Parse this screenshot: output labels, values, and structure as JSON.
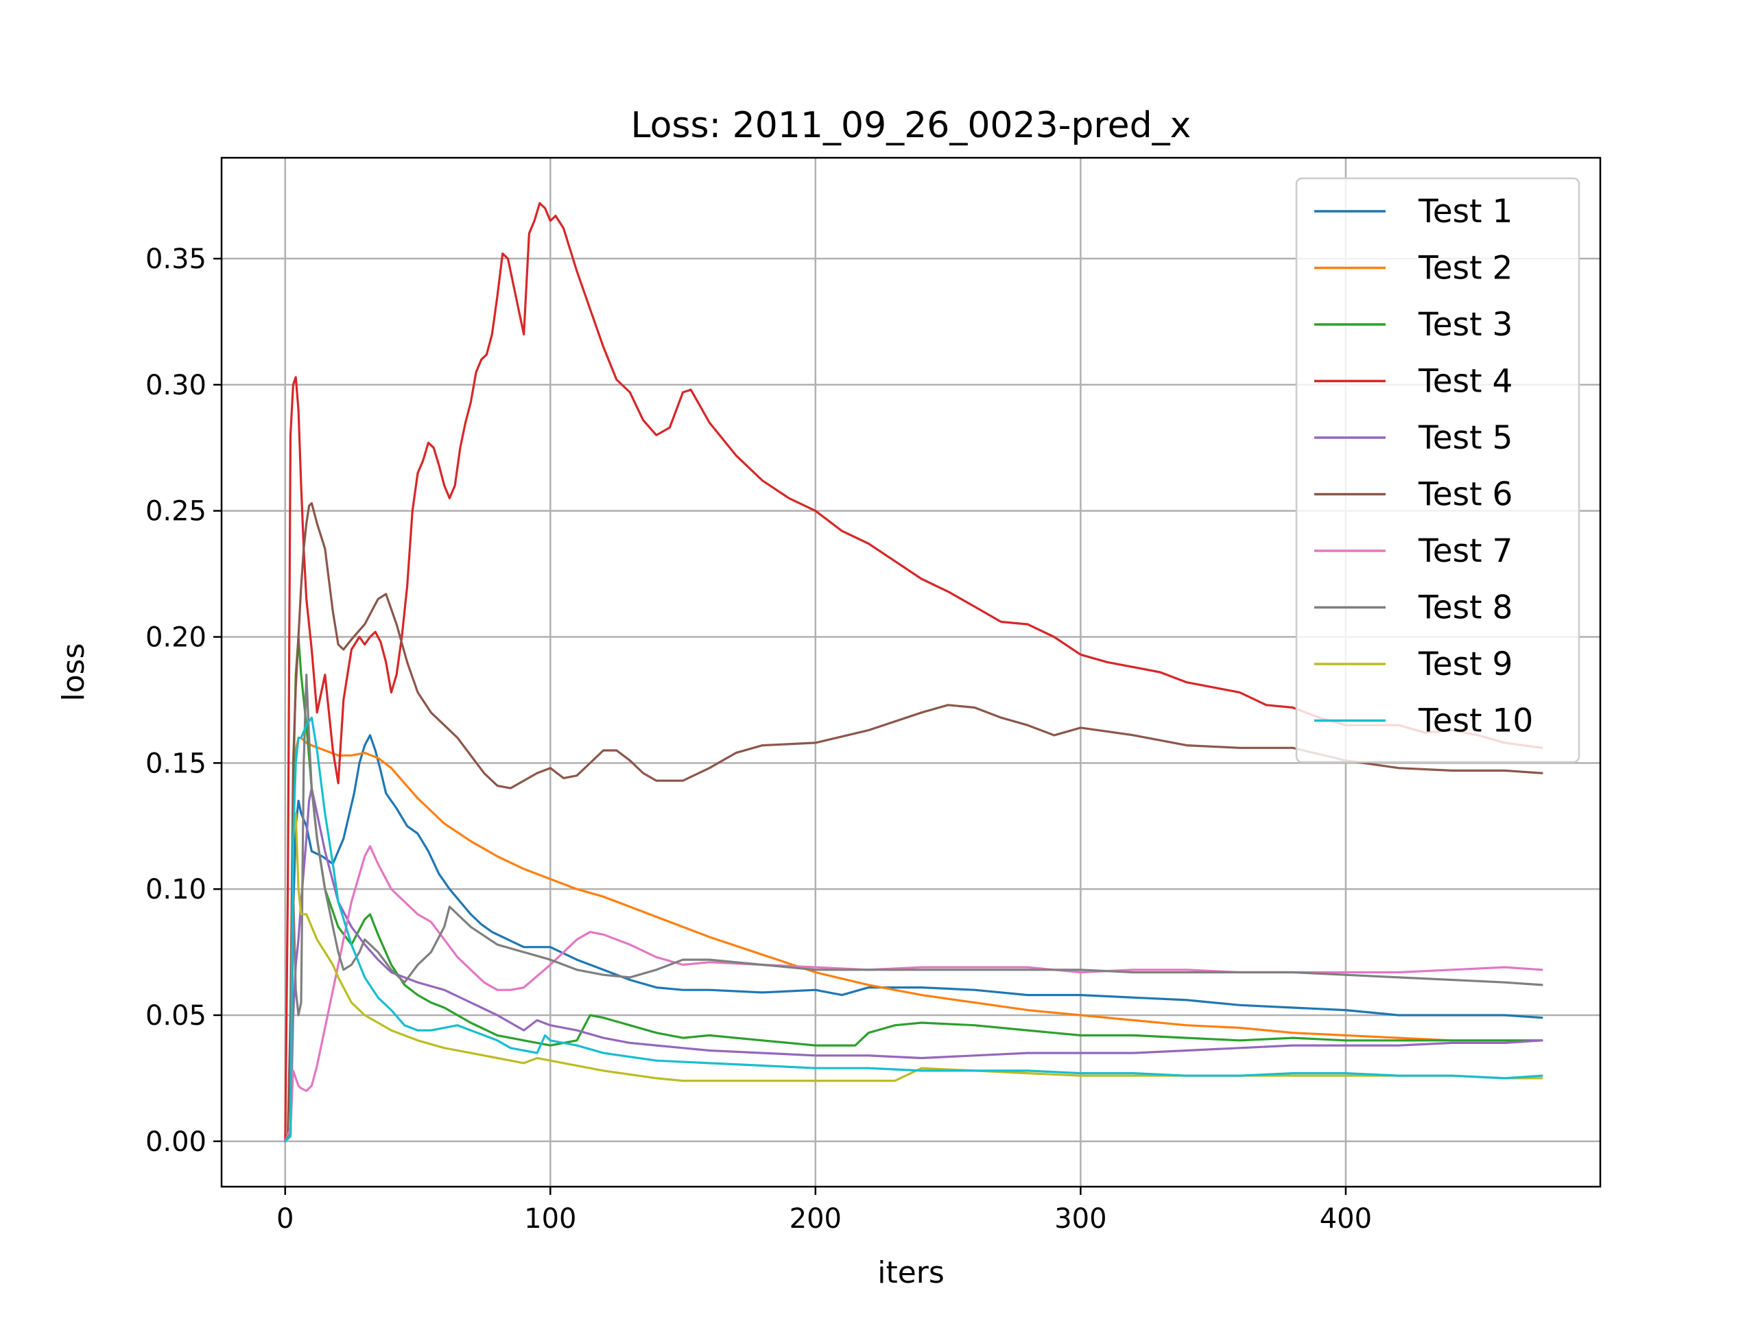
{
  "chart_data": {
    "type": "line",
    "title": "Loss: 2011_09_26_0023-pred_x",
    "xlabel": "iters",
    "ylabel": "loss",
    "xlim": [
      -24,
      496
    ],
    "ylim": [
      -0.018,
      0.39
    ],
    "xticks": [
      0,
      100,
      200,
      300,
      400
    ],
    "yticks": [
      0.0,
      0.05,
      0.1,
      0.15,
      0.2,
      0.25,
      0.3,
      0.35
    ],
    "ytick_labels": [
      "0.00",
      "0.05",
      "0.10",
      "0.15",
      "0.20",
      "0.25",
      "0.30",
      "0.35"
    ],
    "grid": true,
    "legend_position": "top-right",
    "series": [
      {
        "name": "Test 1",
        "color": "#1f77b4",
        "x": [
          0,
          2,
          3,
          4,
          5,
          6,
          8,
          10,
          14,
          18,
          22,
          26,
          28,
          30,
          32,
          34,
          36,
          38,
          42,
          46,
          50,
          54,
          58,
          62,
          66,
          70,
          74,
          78,
          82,
          86,
          90,
          94,
          100,
          110,
          120,
          130,
          140,
          150,
          160,
          180,
          200,
          210,
          220,
          240,
          260,
          280,
          300,
          320,
          340,
          360,
          380,
          400,
          420,
          440,
          460,
          474
        ],
        "y": [
          0.0,
          0.003,
          0.09,
          0.125,
          0.135,
          0.13,
          0.125,
          0.115,
          0.113,
          0.11,
          0.12,
          0.138,
          0.15,
          0.157,
          0.161,
          0.155,
          0.147,
          0.138,
          0.132,
          0.125,
          0.122,
          0.115,
          0.106,
          0.1,
          0.095,
          0.09,
          0.086,
          0.083,
          0.081,
          0.079,
          0.077,
          0.077,
          0.077,
          0.072,
          0.068,
          0.064,
          0.061,
          0.06,
          0.06,
          0.059,
          0.06,
          0.058,
          0.061,
          0.061,
          0.06,
          0.058,
          0.058,
          0.057,
          0.056,
          0.054,
          0.053,
          0.052,
          0.05,
          0.05,
          0.05,
          0.049
        ]
      },
      {
        "name": "Test 2",
        "color": "#ff7f0e",
        "x": [
          0,
          2,
          3,
          4,
          5,
          6,
          8,
          10,
          15,
          20,
          25,
          30,
          35,
          40,
          50,
          60,
          70,
          80,
          90,
          100,
          110,
          120,
          130,
          140,
          150,
          160,
          180,
          200,
          220,
          240,
          260,
          280,
          300,
          320,
          340,
          360,
          380,
          400,
          420,
          440,
          460,
          474
        ],
        "y": [
          0.0,
          0.005,
          0.12,
          0.155,
          0.16,
          0.16,
          0.158,
          0.157,
          0.155,
          0.153,
          0.153,
          0.154,
          0.152,
          0.148,
          0.136,
          0.126,
          0.119,
          0.113,
          0.108,
          0.104,
          0.1,
          0.097,
          0.093,
          0.089,
          0.085,
          0.081,
          0.074,
          0.067,
          0.062,
          0.058,
          0.055,
          0.052,
          0.05,
          0.048,
          0.046,
          0.045,
          0.043,
          0.042,
          0.041,
          0.04,
          0.04,
          0.04
        ]
      },
      {
        "name": "Test 3",
        "color": "#2ca02c",
        "x": [
          0,
          2,
          3,
          4,
          5,
          6,
          8,
          10,
          12,
          15,
          20,
          25,
          30,
          32,
          35,
          40,
          45,
          50,
          55,
          60,
          70,
          80,
          90,
          100,
          110,
          115,
          120,
          130,
          140,
          150,
          160,
          180,
          200,
          215,
          220,
          230,
          240,
          260,
          280,
          300,
          320,
          340,
          360,
          380,
          400,
          420,
          440,
          460,
          474
        ],
        "y": [
          0.0,
          0.003,
          0.14,
          0.185,
          0.2,
          0.185,
          0.165,
          0.14,
          0.12,
          0.1,
          0.085,
          0.078,
          0.088,
          0.09,
          0.082,
          0.07,
          0.062,
          0.058,
          0.055,
          0.053,
          0.047,
          0.042,
          0.04,
          0.038,
          0.04,
          0.05,
          0.049,
          0.046,
          0.043,
          0.041,
          0.042,
          0.04,
          0.038,
          0.038,
          0.043,
          0.046,
          0.047,
          0.046,
          0.044,
          0.042,
          0.042,
          0.041,
          0.04,
          0.041,
          0.04,
          0.04,
          0.04,
          0.04,
          0.04
        ]
      },
      {
        "name": "Test 4",
        "color": "#d62728",
        "x": [
          0,
          1,
          2,
          3,
          4,
          5,
          6,
          7,
          8,
          10,
          12,
          15,
          18,
          20,
          22,
          25,
          28,
          30,
          32,
          34,
          36,
          38,
          40,
          42,
          44,
          46,
          48,
          50,
          52,
          54,
          56,
          58,
          60,
          62,
          64,
          66,
          68,
          70,
          72,
          74,
          76,
          78,
          80,
          82,
          84,
          86,
          88,
          90,
          92,
          94,
          96,
          98,
          100,
          102,
          105,
          110,
          115,
          120,
          125,
          130,
          135,
          140,
          145,
          150,
          153,
          160,
          170,
          180,
          190,
          200,
          210,
          220,
          230,
          240,
          250,
          260,
          270,
          280,
          290,
          300,
          310,
          320,
          330,
          340,
          350,
          360,
          370,
          380,
          390,
          400,
          410,
          420,
          430,
          440,
          450,
          460,
          474
        ],
        "y": [
          0.0,
          0.1,
          0.28,
          0.3,
          0.303,
          0.29,
          0.26,
          0.235,
          0.215,
          0.195,
          0.17,
          0.185,
          0.155,
          0.142,
          0.175,
          0.195,
          0.2,
          0.197,
          0.2,
          0.202,
          0.198,
          0.19,
          0.178,
          0.185,
          0.2,
          0.22,
          0.25,
          0.265,
          0.27,
          0.277,
          0.275,
          0.268,
          0.26,
          0.255,
          0.26,
          0.275,
          0.285,
          0.293,
          0.305,
          0.31,
          0.312,
          0.32,
          0.335,
          0.352,
          0.35,
          0.34,
          0.33,
          0.32,
          0.36,
          0.365,
          0.372,
          0.37,
          0.365,
          0.367,
          0.362,
          0.345,
          0.33,
          0.315,
          0.302,
          0.297,
          0.286,
          0.28,
          0.283,
          0.297,
          0.298,
          0.285,
          0.272,
          0.262,
          0.255,
          0.25,
          0.242,
          0.237,
          0.23,
          0.223,
          0.218,
          0.212,
          0.206,
          0.205,
          0.2,
          0.193,
          0.19,
          0.188,
          0.186,
          0.182,
          0.18,
          0.178,
          0.173,
          0.172,
          0.168,
          0.165,
          0.165,
          0.165,
          0.162,
          0.163,
          0.161,
          0.158,
          0.156
        ]
      },
      {
        "name": "Test 5",
        "color": "#9467bd",
        "x": [
          0,
          2,
          3,
          4,
          5,
          6,
          8,
          9,
          10,
          12,
          15,
          20,
          25,
          30,
          35,
          40,
          50,
          60,
          70,
          80,
          90,
          95,
          100,
          110,
          120,
          130,
          140,
          150,
          160,
          180,
          200,
          220,
          240,
          260,
          280,
          300,
          320,
          340,
          360,
          380,
          400,
          420,
          440,
          460,
          474
        ],
        "y": [
          0.0,
          0.003,
          0.05,
          0.07,
          0.08,
          0.095,
          0.12,
          0.135,
          0.14,
          0.13,
          0.115,
          0.095,
          0.085,
          0.078,
          0.072,
          0.067,
          0.063,
          0.06,
          0.055,
          0.05,
          0.044,
          0.048,
          0.046,
          0.044,
          0.041,
          0.039,
          0.038,
          0.037,
          0.036,
          0.035,
          0.034,
          0.034,
          0.033,
          0.034,
          0.035,
          0.035,
          0.035,
          0.036,
          0.037,
          0.038,
          0.038,
          0.038,
          0.039,
          0.039,
          0.04
        ]
      },
      {
        "name": "Test 6",
        "color": "#8c564b",
        "x": [
          0,
          1,
          2,
          3,
          4,
          5,
          6,
          7,
          8,
          9,
          10,
          12,
          15,
          18,
          20,
          22,
          25,
          30,
          35,
          38,
          42,
          46,
          50,
          55,
          60,
          65,
          70,
          75,
          80,
          85,
          90,
          95,
          100,
          105,
          110,
          115,
          120,
          125,
          130,
          135,
          140,
          150,
          160,
          170,
          180,
          200,
          220,
          240,
          250,
          260,
          270,
          280,
          290,
          300,
          320,
          340,
          360,
          380,
          400,
          420,
          440,
          460,
          474
        ],
        "y": [
          0.0,
          0.003,
          0.05,
          0.15,
          0.18,
          0.2,
          0.22,
          0.235,
          0.245,
          0.252,
          0.253,
          0.245,
          0.235,
          0.21,
          0.197,
          0.195,
          0.199,
          0.205,
          0.215,
          0.217,
          0.205,
          0.19,
          0.178,
          0.17,
          0.165,
          0.16,
          0.153,
          0.146,
          0.141,
          0.14,
          0.143,
          0.146,
          0.148,
          0.144,
          0.145,
          0.15,
          0.155,
          0.155,
          0.151,
          0.146,
          0.143,
          0.143,
          0.148,
          0.154,
          0.157,
          0.158,
          0.163,
          0.17,
          0.173,
          0.172,
          0.168,
          0.165,
          0.161,
          0.164,
          0.161,
          0.157,
          0.156,
          0.156,
          0.151,
          0.148,
          0.147,
          0.147,
          0.146
        ]
      },
      {
        "name": "Test 7",
        "color": "#e377c2",
        "x": [
          0,
          2,
          3,
          4,
          5,
          6,
          8,
          10,
          12,
          15,
          20,
          25,
          30,
          32,
          35,
          40,
          45,
          50,
          55,
          60,
          65,
          70,
          75,
          80,
          85,
          90,
          100,
          110,
          115,
          120,
          130,
          140,
          150,
          160,
          180,
          200,
          220,
          240,
          260,
          280,
          300,
          320,
          340,
          360,
          380,
          400,
          420,
          440,
          460,
          474
        ],
        "y": [
          0.0,
          0.005,
          0.028,
          0.025,
          0.022,
          0.021,
          0.02,
          0.022,
          0.03,
          0.045,
          0.07,
          0.095,
          0.113,
          0.117,
          0.11,
          0.1,
          0.095,
          0.09,
          0.087,
          0.08,
          0.073,
          0.068,
          0.063,
          0.06,
          0.06,
          0.061,
          0.07,
          0.08,
          0.083,
          0.082,
          0.078,
          0.073,
          0.07,
          0.071,
          0.07,
          0.069,
          0.068,
          0.069,
          0.069,
          0.069,
          0.067,
          0.068,
          0.068,
          0.067,
          0.067,
          0.067,
          0.067,
          0.068,
          0.069,
          0.068
        ]
      },
      {
        "name": "Test 8",
        "color": "#7f7f7f",
        "x": [
          0,
          2,
          3,
          4,
          5,
          6,
          7,
          8,
          9,
          10,
          12,
          15,
          18,
          20,
          22,
          25,
          28,
          30,
          35,
          40,
          45,
          50,
          55,
          60,
          62,
          65,
          70,
          80,
          90,
          100,
          110,
          120,
          130,
          140,
          150,
          160,
          180,
          200,
          220,
          240,
          260,
          280,
          300,
          320,
          340,
          360,
          380,
          400,
          420,
          440,
          460,
          474
        ],
        "y": [
          0.0,
          0.003,
          0.1,
          0.06,
          0.05,
          0.055,
          0.15,
          0.185,
          0.16,
          0.14,
          0.12,
          0.1,
          0.085,
          0.075,
          0.068,
          0.07,
          0.075,
          0.08,
          0.075,
          0.068,
          0.063,
          0.07,
          0.075,
          0.085,
          0.093,
          0.09,
          0.085,
          0.078,
          0.075,
          0.072,
          0.068,
          0.066,
          0.065,
          0.068,
          0.072,
          0.072,
          0.07,
          0.068,
          0.068,
          0.068,
          0.068,
          0.068,
          0.068,
          0.067,
          0.067,
          0.067,
          0.067,
          0.066,
          0.065,
          0.064,
          0.063,
          0.062
        ]
      },
      {
        "name": "Test 9",
        "color": "#bcbd22",
        "x": [
          0,
          2,
          3,
          4,
          5,
          6,
          8,
          10,
          12,
          15,
          18,
          20,
          25,
          30,
          35,
          40,
          50,
          60,
          70,
          80,
          90,
          95,
          100,
          120,
          140,
          150,
          160,
          180,
          200,
          220,
          230,
          240,
          260,
          280,
          300,
          320,
          340,
          360,
          380,
          400,
          420,
          440,
          460,
          474
        ],
        "y": [
          0.0,
          0.002,
          0.12,
          0.13,
          0.1,
          0.09,
          0.09,
          0.085,
          0.08,
          0.075,
          0.07,
          0.065,
          0.055,
          0.05,
          0.047,
          0.044,
          0.04,
          0.037,
          0.035,
          0.033,
          0.031,
          0.033,
          0.032,
          0.028,
          0.025,
          0.024,
          0.024,
          0.024,
          0.024,
          0.024,
          0.024,
          0.029,
          0.028,
          0.027,
          0.026,
          0.026,
          0.026,
          0.026,
          0.026,
          0.026,
          0.026,
          0.026,
          0.025,
          0.025
        ]
      },
      {
        "name": "Test 10",
        "color": "#17becf",
        "x": [
          0,
          2,
          3,
          4,
          5,
          6,
          8,
          10,
          12,
          15,
          18,
          20,
          25,
          30,
          35,
          40,
          45,
          50,
          55,
          60,
          65,
          70,
          75,
          80,
          85,
          90,
          95,
          98,
          100,
          110,
          120,
          140,
          160,
          180,
          200,
          220,
          240,
          260,
          280,
          300,
          320,
          340,
          360,
          380,
          400,
          420,
          440,
          460,
          474
        ],
        "y": [
          0.0,
          0.002,
          0.12,
          0.15,
          0.16,
          0.16,
          0.165,
          0.168,
          0.155,
          0.13,
          0.11,
          0.095,
          0.078,
          0.065,
          0.057,
          0.052,
          0.046,
          0.044,
          0.044,
          0.045,
          0.046,
          0.044,
          0.042,
          0.04,
          0.037,
          0.036,
          0.035,
          0.042,
          0.04,
          0.038,
          0.035,
          0.032,
          0.031,
          0.03,
          0.029,
          0.029,
          0.028,
          0.028,
          0.028,
          0.027,
          0.027,
          0.026,
          0.026,
          0.027,
          0.027,
          0.026,
          0.026,
          0.025,
          0.026
        ]
      }
    ]
  }
}
